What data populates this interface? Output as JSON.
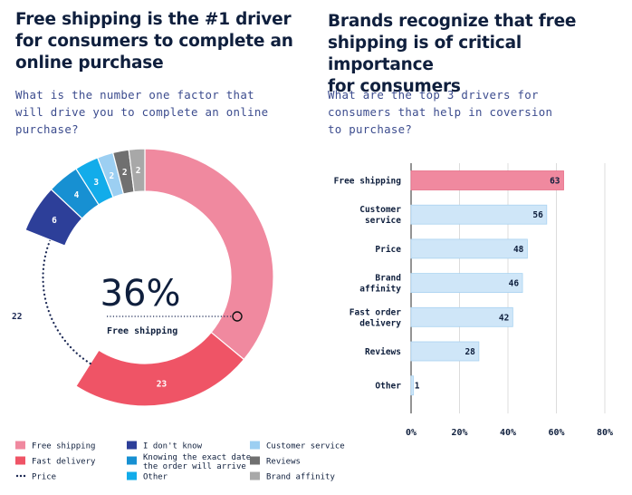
{
  "left": {
    "title_lines": [
      "Free shipping is the #1 driver",
      "for consumers to complete an",
      "online purchase"
    ],
    "subtitle_lines": [
      "What is the number one factor that",
      "will drive you to complete an online",
      "purchase?"
    ]
  },
  "right": {
    "title_lines": [
      "Brands recognize that free",
      "shipping is of critical importance",
      "for consumers"
    ],
    "subtitle_lines": [
      "What are the top 3 drivers for",
      "consumers that help in coversion",
      "to purchase?"
    ]
  },
  "chart_data": [
    {
      "type": "pie",
      "variant": "donut",
      "center_value": "36%",
      "center_label": "Free shipping",
      "slices": [
        {
          "name": "Free shipping",
          "value": 36,
          "label": "",
          "color": "#f0899f"
        },
        {
          "name": "Fast delivery",
          "value": 23,
          "label": "23",
          "color": "#ef5466"
        },
        {
          "name": "Price",
          "value": 22,
          "label": "22",
          "color": "#1a2753",
          "style": "dotted"
        },
        {
          "name": "I don't know",
          "value": 6,
          "label": "6",
          "color": "#2d3f99"
        },
        {
          "name": "Knowing the exact date the order will arrive",
          "value": 4,
          "label": "4",
          "color": "#1790d2"
        },
        {
          "name": "Other",
          "value": 3,
          "label": "3",
          "color": "#12acea"
        },
        {
          "name": "Customer service",
          "value": 2,
          "label": "2",
          "color": "#9ccff2"
        },
        {
          "name": "Reviews",
          "value": 2,
          "label": "2",
          "color": "#707070"
        },
        {
          "name": "Brand affinity",
          "value": 2,
          "label": "2",
          "color": "#a8a8a8"
        }
      ],
      "legend": [
        {
          "label": "Free shipping",
          "color": "#f0899f",
          "marker": "box"
        },
        {
          "label": "Fast delivery",
          "color": "#ef5466",
          "marker": "box"
        },
        {
          "label": "Price",
          "color": "#1a2753",
          "marker": "dots"
        },
        {
          "label": "I don't know",
          "color": "#2d3f99",
          "marker": "box"
        },
        {
          "label": "Knowing the exact date",
          "label2": "the order will arrive",
          "color": "#1790d2",
          "marker": "box"
        },
        {
          "label": "Other",
          "color": "#12acea",
          "marker": "box"
        },
        {
          "label": "Customer service",
          "color": "#9ccff2",
          "marker": "box"
        },
        {
          "label": "Reviews",
          "color": "#707070",
          "marker": "box"
        },
        {
          "label": "Brand affinity",
          "color": "#a8a8a8",
          "marker": "box"
        }
      ]
    },
    {
      "type": "bar",
      "orientation": "horizontal",
      "categories": [
        [
          "Free shipping"
        ],
        [
          "Customer",
          "service"
        ],
        [
          "Price"
        ],
        [
          "Brand",
          "affinity"
        ],
        [
          "Fast order",
          "delivery"
        ],
        [
          "Reviews"
        ],
        [
          "Other"
        ]
      ],
      "values": [
        63,
        56,
        48,
        46,
        42,
        28,
        1
      ],
      "highlight_index": 0,
      "highlight_color": "#f0899f",
      "bar_color": "#cfe6f8",
      "bar_edge_color": "#a9d3f1",
      "xlim": [
        0,
        80
      ],
      "xticks": [
        "0%",
        "20%",
        "40%",
        "60%",
        "80%"
      ],
      "grid": true
    }
  ]
}
